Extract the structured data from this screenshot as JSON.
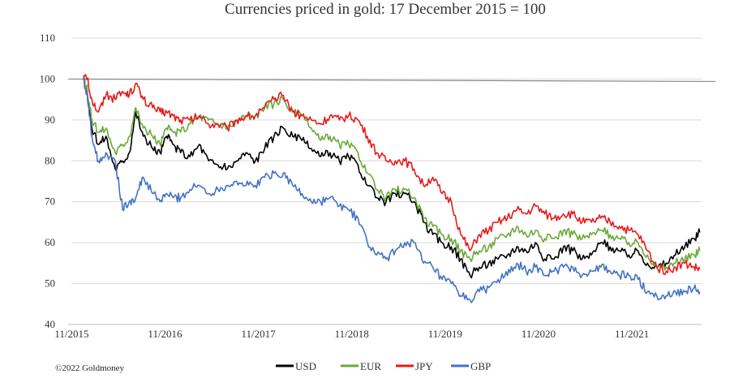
{
  "chart_data": {
    "type": "line",
    "title": "Currencies priced in gold: 17 December 2015 = 100",
    "copyright": "©2022 Goldmoney",
    "ylim": [
      40,
      110
    ],
    "y_ticks": [
      "40",
      "50",
      "60",
      "70",
      "80",
      "90",
      "100",
      "110"
    ],
    "x_ticks": [
      "11/2015",
      "11/2016",
      "11/2017",
      "11/2018",
      "11/2019",
      "11/2020",
      "11/2021"
    ],
    "xlim": [
      2015.83,
      2022.58
    ],
    "grid": true,
    "legend_position": "bottom",
    "reference_line": {
      "y": 100,
      "color": "#888888"
    },
    "series": [
      {
        "name": "USD",
        "color": "#000000",
        "x": [
          2015.96,
          2016.0,
          2016.05,
          2016.12,
          2016.2,
          2016.3,
          2016.38,
          2016.45,
          2016.52,
          2016.6,
          2016.7,
          2016.78,
          2016.85,
          2016.92,
          2017.0,
          2017.1,
          2017.2,
          2017.3,
          2017.4,
          2017.5,
          2017.6,
          2017.7,
          2017.8,
          2017.9,
          2018.0,
          2018.1,
          2018.2,
          2018.3,
          2018.4,
          2018.5,
          2018.6,
          2018.7,
          2018.8,
          2018.9,
          2019.0,
          2019.1,
          2019.2,
          2019.3,
          2019.4,
          2019.5,
          2019.6,
          2019.7,
          2019.8,
          2019.9,
          2020.0,
          2020.1,
          2020.2,
          2020.3,
          2020.4,
          2020.5,
          2020.6,
          2020.7,
          2020.8,
          2020.9,
          2021.0,
          2021.1,
          2021.2,
          2021.3,
          2021.4,
          2021.5,
          2021.6,
          2021.7,
          2021.8,
          2021.9,
          2022.0,
          2022.1,
          2022.2,
          2022.3,
          2022.4,
          2022.5,
          2022.56
        ],
        "y": [
          100,
          96,
          88,
          84,
          86,
          78,
          80,
          82,
          92,
          86,
          83,
          82,
          86,
          84,
          82,
          81,
          84,
          80,
          79,
          78,
          80,
          82,
          80,
          83,
          86,
          88,
          86,
          85,
          83,
          81,
          82,
          80,
          81,
          79,
          74,
          71,
          70,
          72,
          72,
          70,
          65,
          62,
          60,
          59,
          56,
          52,
          54,
          55,
          56,
          57,
          59,
          58,
          60,
          56,
          56,
          59,
          58,
          56,
          57,
          60,
          59,
          58,
          57,
          58,
          55,
          54,
          55,
          57,
          59,
          61,
          62.5
        ]
      },
      {
        "name": "EUR",
        "color": "#6aaa3a",
        "x": [
          2015.96,
          2016.0,
          2016.05,
          2016.12,
          2016.2,
          2016.3,
          2016.38,
          2016.45,
          2016.52,
          2016.6,
          2016.7,
          2016.78,
          2016.85,
          2016.92,
          2017.0,
          2017.1,
          2017.2,
          2017.3,
          2017.4,
          2017.5,
          2017.6,
          2017.7,
          2017.8,
          2017.9,
          2018.0,
          2018.1,
          2018.2,
          2018.3,
          2018.4,
          2018.5,
          2018.6,
          2018.7,
          2018.8,
          2018.9,
          2019.0,
          2019.1,
          2019.2,
          2019.3,
          2019.4,
          2019.5,
          2019.6,
          2019.7,
          2019.8,
          2019.9,
          2020.0,
          2020.1,
          2020.2,
          2020.3,
          2020.4,
          2020.5,
          2020.6,
          2020.7,
          2020.8,
          2020.9,
          2021.0,
          2021.1,
          2021.2,
          2021.3,
          2021.4,
          2021.5,
          2021.6,
          2021.7,
          2021.8,
          2021.9,
          2022.0,
          2022.1,
          2022.2,
          2022.3,
          2022.4,
          2022.5,
          2022.56
        ],
        "y": [
          100,
          97,
          90,
          87,
          88,
          82,
          84,
          86,
          93,
          88,
          86,
          84,
          88,
          87,
          87,
          89,
          91,
          90,
          89,
          88,
          90,
          91,
          91,
          93,
          94,
          95,
          92,
          91,
          88,
          85,
          86,
          84,
          84,
          82,
          77,
          73,
          71,
          73,
          73,
          71,
          66,
          64,
          62,
          61,
          58,
          56,
          58,
          59,
          61,
          62,
          64,
          62,
          63,
          61,
          61,
          63,
          62,
          61,
          62,
          63,
          62,
          61,
          60,
          60,
          57,
          54,
          54,
          55,
          56,
          57,
          58
        ]
      },
      {
        "name": "JPY",
        "color": "#e81b1b",
        "x": [
          2015.96,
          2016.0,
          2016.05,
          2016.12,
          2016.2,
          2016.3,
          2016.38,
          2016.45,
          2016.52,
          2016.6,
          2016.7,
          2016.78,
          2016.85,
          2016.92,
          2017.0,
          2017.1,
          2017.2,
          2017.3,
          2017.4,
          2017.5,
          2017.6,
          2017.7,
          2017.8,
          2017.9,
          2018.0,
          2018.1,
          2018.2,
          2018.3,
          2018.4,
          2018.5,
          2018.6,
          2018.7,
          2018.8,
          2018.9,
          2019.0,
          2019.1,
          2019.2,
          2019.3,
          2019.4,
          2019.5,
          2019.6,
          2019.7,
          2019.8,
          2019.9,
          2020.0,
          2020.1,
          2020.2,
          2020.3,
          2020.4,
          2020.5,
          2020.6,
          2020.7,
          2020.8,
          2020.9,
          2021.0,
          2021.1,
          2021.2,
          2021.3,
          2021.4,
          2021.5,
          2021.6,
          2021.7,
          2021.8,
          2021.9,
          2022.0,
          2022.1,
          2022.2,
          2022.3,
          2022.4,
          2022.5,
          2022.56
        ],
        "y": [
          100,
          100,
          95,
          92,
          96,
          95,
          97,
          96,
          99,
          95,
          93,
          92,
          92,
          91,
          90,
          90,
          91,
          89,
          89,
          88,
          90,
          91,
          91,
          93,
          95,
          96,
          92,
          91,
          90,
          89,
          91,
          90,
          91,
          90,
          86,
          82,
          80,
          80,
          80,
          78,
          74,
          76,
          72,
          70,
          62,
          58,
          62,
          63,
          65,
          66,
          68,
          67,
          69,
          67,
          66,
          67,
          67,
          65,
          65,
          66,
          65,
          64,
          63,
          62,
          58,
          54,
          53,
          54,
          55,
          54,
          53.5
        ]
      },
      {
        "name": "GBP",
        "color": "#4472c4",
        "x": [
          2015.96,
          2016.0,
          2016.05,
          2016.12,
          2016.2,
          2016.3,
          2016.38,
          2016.45,
          2016.52,
          2016.6,
          2016.7,
          2016.78,
          2016.85,
          2016.92,
          2017.0,
          2017.1,
          2017.2,
          2017.3,
          2017.4,
          2017.5,
          2017.6,
          2017.7,
          2017.8,
          2017.9,
          2018.0,
          2018.1,
          2018.2,
          2018.3,
          2018.4,
          2018.5,
          2018.6,
          2018.7,
          2018.8,
          2018.9,
          2019.0,
          2019.1,
          2019.2,
          2019.3,
          2019.4,
          2019.5,
          2019.6,
          2019.7,
          2019.8,
          2019.9,
          2020.0,
          2020.1,
          2020.2,
          2020.3,
          2020.4,
          2020.5,
          2020.6,
          2020.7,
          2020.8,
          2020.9,
          2021.0,
          2021.1,
          2021.2,
          2021.3,
          2021.4,
          2021.5,
          2021.6,
          2021.7,
          2021.8,
          2021.9,
          2022.0,
          2022.1,
          2022.2,
          2022.3,
          2022.4,
          2022.5,
          2022.56
        ],
        "y": [
          100,
          96,
          86,
          80,
          82,
          80,
          68,
          70,
          71,
          76,
          72,
          70,
          72,
          71,
          71,
          73,
          74,
          72,
          73,
          74,
          75,
          74,
          74,
          76,
          77,
          77,
          74,
          72,
          70,
          70,
          71,
          69,
          68,
          66,
          60,
          57,
          56,
          58,
          60,
          60,
          55,
          54,
          51,
          50,
          47,
          46,
          48,
          49,
          51,
          52,
          55,
          53,
          54,
          52,
          53,
          54,
          54,
          52,
          53,
          54,
          53,
          52,
          52,
          51,
          48,
          47,
          47,
          48,
          48,
          49,
          48
        ]
      }
    ]
  }
}
